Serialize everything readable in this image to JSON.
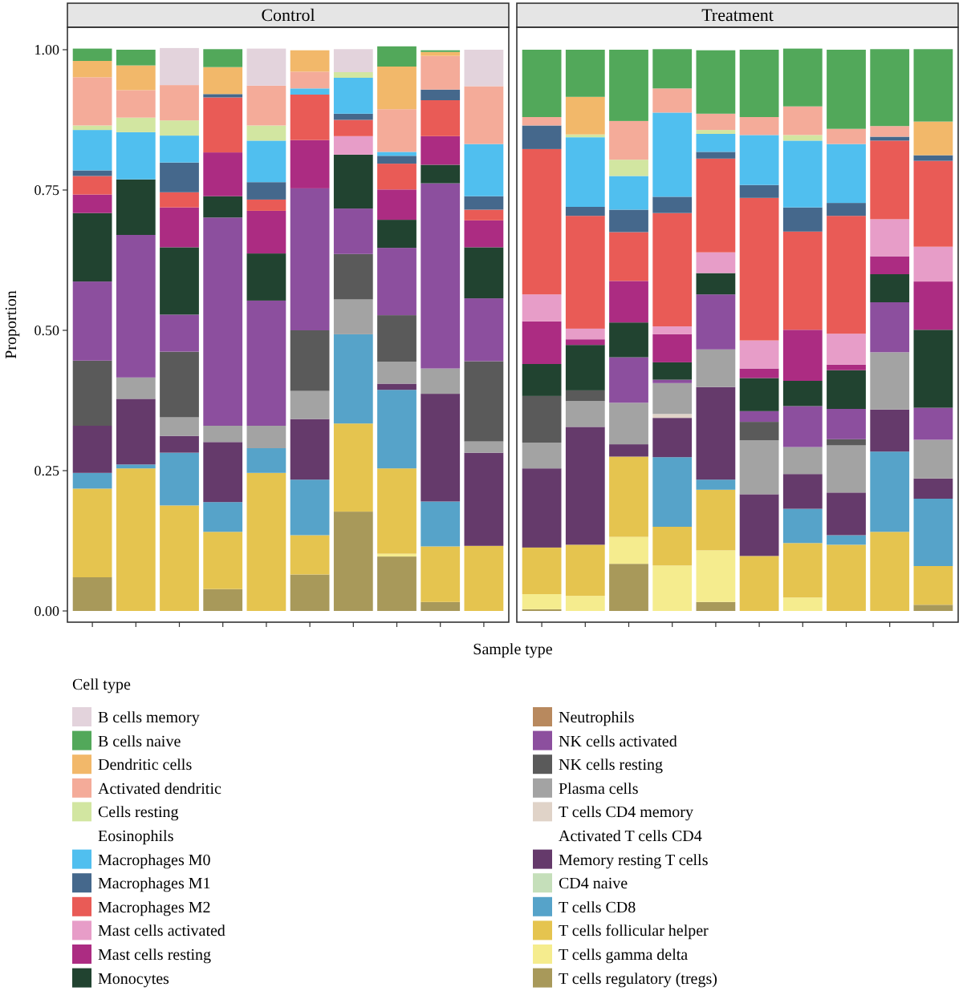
{
  "chart_data": {
    "type": "bar",
    "stacked": true,
    "ylabel": "Proportion",
    "xlabel": "Sample type",
    "legend_title": "Cell type",
    "legend": "bottom",
    "annotations": [
      "Control",
      "Treatment",
      "Eosinophils",
      "Activated T cells CD4"
    ],
    "categories": [
      null,
      null,
      null,
      null,
      null,
      null,
      null,
      null,
      null,
      null,
      null,
      null,
      null,
      null,
      null,
      null,
      null,
      null,
      null,
      null
    ],
    "ylim": [
      -0.02,
      1.04
    ],
    "yticks": [
      {
        "value": 0,
        "label": "0.00"
      },
      {
        "value": 0.25,
        "label": "0.25"
      },
      {
        "value": 0.5,
        "label": "0.50"
      },
      {
        "value": 0.75,
        "label": "0.75"
      },
      {
        "value": 1,
        "label": "1.00"
      }
    ],
    "series": [
      {
        "name": "T cells regulatory (tregs)",
        "color": "#a8995a",
        "values": [
          0.06,
          0,
          0,
          0.039,
          0,
          0.065,
          0.177,
          0.097,
          0.016,
          0,
          0.003,
          0,
          0.084,
          0,
          0.016,
          0,
          0,
          0,
          0,
          0.011
        ]
      },
      {
        "name": "T cells gamma delta",
        "color": "#f5ec8e",
        "values": [
          0,
          0,
          0,
          0,
          0,
          0,
          0,
          0.005,
          0,
          0,
          0.027,
          0.027,
          0.048,
          0.081,
          0.092,
          0,
          0.024,
          0,
          0,
          0
        ]
      },
      {
        "name": "T cells follicular helper",
        "color": "#e5c44f",
        "values": [
          0.158,
          0.254,
          0.188,
          0.102,
          0.246,
          0.07,
          0.157,
          0.152,
          0.099,
          0.116,
          0.083,
          0.091,
          0.143,
          0.069,
          0.108,
          0.098,
          0.097,
          0.118,
          0.141,
          0.069
        ]
      },
      {
        "name": "T cells CD8",
        "color": "#56a3c9",
        "values": [
          0.028,
          0.007,
          0.094,
          0.053,
          0.044,
          0.099,
          0.159,
          0.14,
          0.08,
          0,
          0,
          0,
          0,
          0.124,
          0.018,
          0,
          0.061,
          0.017,
          0.143,
          0.12
        ]
      },
      {
        "name": "CD4 naive",
        "color": "#c5dfba",
        "values": [
          0,
          0,
          0,
          0,
          0,
          0,
          0,
          0,
          0,
          0,
          0,
          0,
          0,
          0,
          0,
          0,
          0,
          0,
          0,
          0
        ]
      },
      {
        "name": "Memory resting T cells",
        "color": "#653a6b",
        "values": [
          0.084,
          0.117,
          0.03,
          0.107,
          0,
          0.108,
          0,
          0.011,
          0.192,
          0.166,
          0.141,
          0.21,
          0.022,
          0.07,
          0.165,
          0.11,
          0.062,
          0.076,
          0.075,
          0.036
        ]
      },
      {
        "name": "T cells CD4 memory",
        "color": "#e0d3c8",
        "values": [
          0,
          0,
          0,
          0,
          0,
          0,
          0,
          0,
          0,
          0,
          0,
          0,
          0,
          0.007,
          0,
          0,
          0,
          0,
          0,
          0
        ]
      },
      {
        "name": "Plasma cells",
        "color": "#a3a3a3",
        "values": [
          0,
          0.038,
          0.033,
          0.029,
          0.04,
          0.05,
          0.062,
          0.039,
          0.045,
          0.02,
          0.046,
          0.046,
          0.074,
          0.055,
          0.067,
          0.096,
          0.048,
          0.084,
          0.102,
          0.069
        ]
      },
      {
        "name": "NK cells resting",
        "color": "#5a5a5a",
        "values": [
          0.116,
          0,
          0.117,
          0,
          0,
          0.108,
          0.081,
          0.083,
          0,
          0.143,
          0.083,
          0.019,
          0,
          0,
          0,
          0.033,
          0,
          0.011,
          0,
          0
        ]
      },
      {
        "name": "NK cells activated",
        "color": "#8c4f9e",
        "values": [
          0.141,
          0.254,
          0.066,
          0.371,
          0.223,
          0.253,
          0.081,
          0.12,
          0.33,
          0.112,
          0,
          0,
          0.081,
          0.006,
          0.098,
          0.019,
          0.073,
          0.054,
          0.089,
          0.057
        ]
      },
      {
        "name": "Neutrophils",
        "color": "#b8895e",
        "values": [
          0,
          0,
          0,
          0,
          0,
          0,
          0,
          0,
          0,
          0,
          0,
          0,
          0,
          0,
          0,
          0,
          0,
          0,
          0,
          0
        ]
      },
      {
        "name": "Monocytes",
        "color": "#214330",
        "values": [
          0.122,
          0.099,
          0.12,
          0.038,
          0.084,
          0,
          0.096,
          0.05,
          0.033,
          0.091,
          0.057,
          0.081,
          0.062,
          0.031,
          0.038,
          0.059,
          0.045,
          0.069,
          0.05,
          0.139
        ]
      },
      {
        "name": "Mast cells resting",
        "color": "#ac2c82",
        "values": [
          0.033,
          0,
          0.071,
          0.078,
          0.076,
          0.086,
          0,
          0.054,
          0.051,
          0.048,
          0.076,
          0.01,
          0.074,
          0.05,
          0,
          0.017,
          0.091,
          0.01,
          0.032,
          0.086
        ]
      },
      {
        "name": "Mast cells activated",
        "color": "#e79dc8",
        "values": [
          0,
          0,
          0,
          0,
          0,
          0,
          0.033,
          0,
          0,
          0,
          0.048,
          0.019,
          0,
          0.014,
          0.037,
          0.05,
          0,
          0.055,
          0.066,
          0.062
        ]
      },
      {
        "name": "Macrophages M2",
        "color": "#e95b56",
        "values": [
          0.033,
          0,
          0.027,
          0.098,
          0.02,
          0.081,
          0.029,
          0.046,
          0.064,
          0.019,
          0.259,
          0.201,
          0.087,
          0.202,
          0.167,
          0.254,
          0.175,
          0.21,
          0.14,
          0.153
        ]
      },
      {
        "name": "Macrophages M1",
        "color": "#45688c",
        "values": [
          0.01,
          0,
          0.053,
          0.006,
          0.031,
          0,
          0.011,
          0.014,
          0.019,
          0.024,
          0.042,
          0.016,
          0.04,
          0.029,
          0.012,
          0.023,
          0.043,
          0.023,
          0.007,
          0.01
        ]
      },
      {
        "name": "Macrophages M0",
        "color": "#50bfef",
        "values": [
          0.072,
          0.084,
          0.048,
          0,
          0.074,
          0.011,
          0.064,
          0.007,
          0,
          0.093,
          0,
          0.124,
          0.06,
          0.15,
          0.032,
          0.089,
          0.119,
          0.105,
          0,
          0
        ]
      },
      {
        "name": "Cells resting",
        "color": "#d2e6a1",
        "values": [
          0.008,
          0.026,
          0.027,
          0,
          0.027,
          0,
          0.01,
          0,
          0,
          0,
          0,
          0.005,
          0.029,
          0,
          0.007,
          0,
          0.01,
          0,
          0,
          0
        ]
      },
      {
        "name": "Activated dendritic",
        "color": "#f4ab99",
        "values": [
          0.086,
          0.049,
          0.063,
          0,
          0.071,
          0.03,
          0,
          0.076,
          0.06,
          0.103,
          0.015,
          0,
          0.069,
          0.043,
          0.029,
          0.032,
          0.051,
          0.027,
          0.019,
          0
        ]
      },
      {
        "name": "Dendritic cells",
        "color": "#f2b86a",
        "values": [
          0.029,
          0.044,
          0,
          0.048,
          0,
          0.038,
          0,
          0.076,
          0.007,
          0,
          0,
          0.067,
          0,
          0,
          0,
          0,
          0,
          0,
          0,
          0.06
        ]
      },
      {
        "name": "B cells naive",
        "color": "#52a85a",
        "values": [
          0.022,
          0.028,
          0,
          0.032,
          0,
          0,
          0,
          0.036,
          0.003,
          0,
          0.12,
          0.084,
          0.127,
          0.07,
          0.113,
          0.12,
          0.103,
          0.141,
          0.137,
          0.129
        ]
      },
      {
        "name": "B cells memory",
        "color": "#e3d3dc",
        "values": [
          0,
          0,
          0.066,
          0,
          0.066,
          0,
          0.041,
          0,
          0,
          0.065,
          0,
          0,
          0,
          0,
          0,
          0,
          0,
          0,
          0,
          0
        ]
      }
    ]
  }
}
